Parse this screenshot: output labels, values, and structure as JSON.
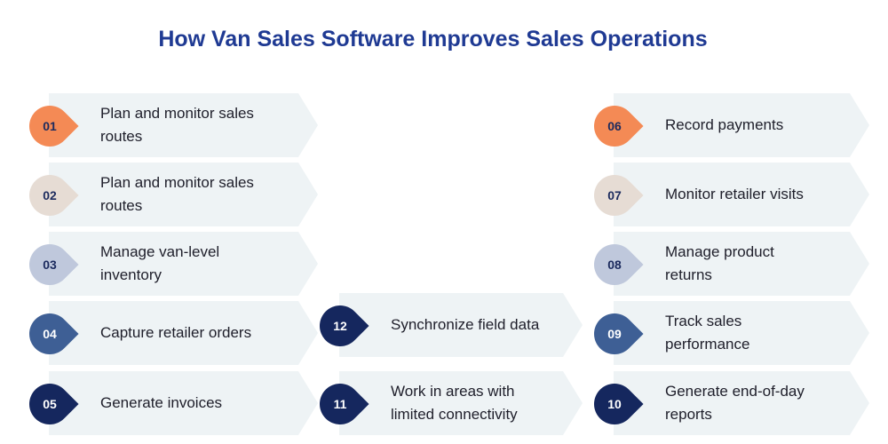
{
  "title": "How Van Sales Software Improves Sales Operations",
  "colors": {
    "title": "#1f3a93",
    "card_bg": "#eef3f5",
    "label_text": "#1e1e2a"
  },
  "steps": [
    {
      "num": "01",
      "label": "Plan and monitor sales routes",
      "badge_color": "#f48a55",
      "num_color": "#1c2b5e"
    },
    {
      "num": "02",
      "label": "Plan and monitor sales routes",
      "badge_color": "#e6dcd4",
      "num_color": "#1c2b5e"
    },
    {
      "num": "03",
      "label": "Manage van-level inventory",
      "badge_color": "#bfc8dc",
      "num_color": "#1c2b5e"
    },
    {
      "num": "04",
      "label": "Capture retailer orders",
      "badge_color": "#3e5f95",
      "num_color": "#ffffff"
    },
    {
      "num": "05",
      "label": "Generate invoices",
      "badge_color": "#15275e",
      "num_color": "#ffffff"
    },
    {
      "num": "06",
      "label": "Record payments",
      "badge_color": "#f48a55",
      "num_color": "#1c2b5e"
    },
    {
      "num": "07",
      "label": "Monitor retailer visits",
      "badge_color": "#e6dcd4",
      "num_color": "#1c2b5e"
    },
    {
      "num": "08",
      "label": "Manage product returns",
      "badge_color": "#bfc8dc",
      "num_color": "#1c2b5e"
    },
    {
      "num": "09",
      "label": "Track sales performance",
      "badge_color": "#3e5f95",
      "num_color": "#ffffff"
    },
    {
      "num": "10",
      "label": "Generate end-of-day reports",
      "badge_color": "#15275e",
      "num_color": "#ffffff"
    },
    {
      "num": "11",
      "label": "Work in areas with limited connectivity",
      "badge_color": "#15275e",
      "num_color": "#ffffff"
    },
    {
      "num": "12",
      "label": "Synchronize field data",
      "badge_color": "#15275e",
      "num_color": "#ffffff"
    }
  ]
}
